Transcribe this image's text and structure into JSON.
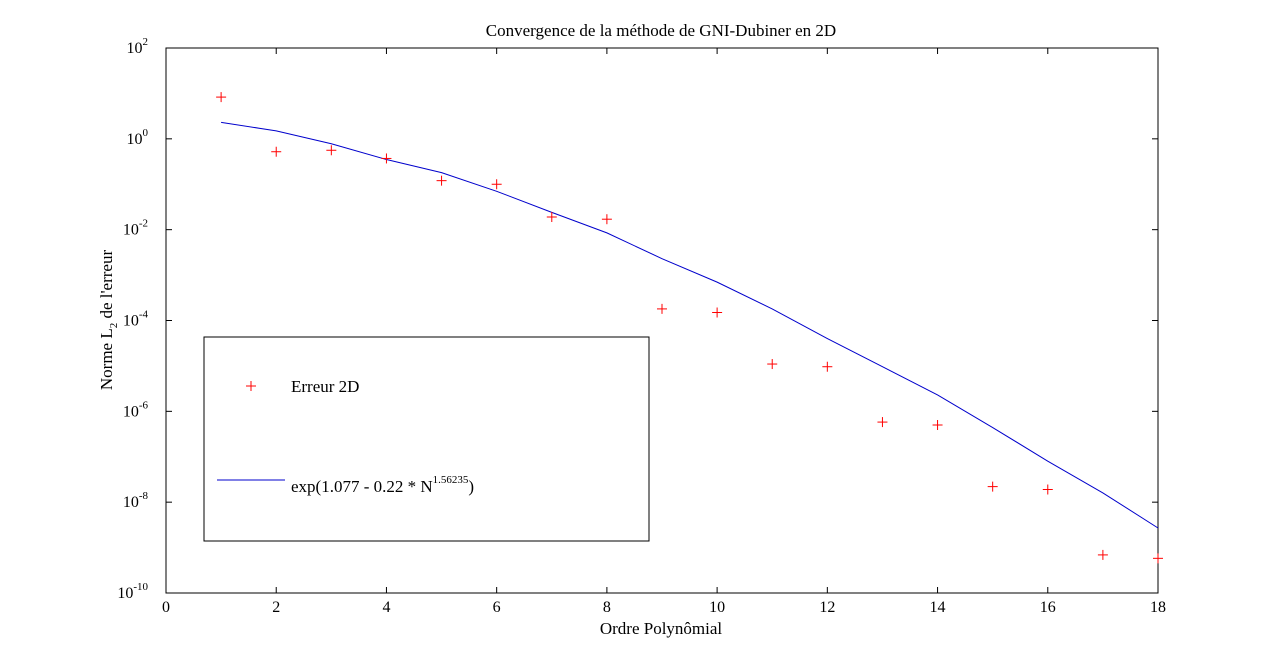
{
  "chart_data": {
    "type": "scatter",
    "title": "Convergence de la méthode de GNI-Dubiner en 2D",
    "xlabel": "Ordre Polynômial",
    "ylabel": {
      "main": "Norme L",
      "sub": "2",
      "rest": " de l'erreur"
    },
    "xlim": [
      0,
      18
    ],
    "ylim": [
      1e-10,
      100
    ],
    "yscale": "log",
    "xticks": [
      0,
      2,
      4,
      6,
      8,
      10,
      12,
      14,
      16,
      18
    ],
    "yticks": [
      {
        "base": "10",
        "exp": "2",
        "value": 100
      },
      {
        "base": "10",
        "exp": "0",
        "value": 1
      },
      {
        "base": "10",
        "exp": "-2",
        "value": 0.01
      },
      {
        "base": "10",
        "exp": "-4",
        "value": 0.0001
      },
      {
        "base": "10",
        "exp": "-6",
        "value": 1e-06
      },
      {
        "base": "10",
        "exp": "-8",
        "value": 1e-08
      },
      {
        "base": "10",
        "exp": "-10",
        "value": 1e-10
      }
    ],
    "grid": false,
    "legend": "center-left",
    "series": [
      {
        "name": "Erreur 2D",
        "kind": "marker",
        "marker": "+",
        "color": "#ff0000",
        "x": [
          1,
          2,
          3,
          4,
          5,
          6,
          7,
          8,
          9,
          10,
          11,
          12,
          13,
          14,
          15,
          16,
          17,
          18
        ],
        "y": [
          8.3,
          0.52,
          0.56,
          0.37,
          0.12,
          0.1,
          0.019,
          0.017,
          0.00018,
          0.00015,
          1.1e-05,
          9.6e-06,
          5.8e-07,
          5e-07,
          2.2e-08,
          1.9e-08,
          6.9e-10,
          5.8e-10
        ]
      },
      {
        "name": {
          "main": "exp(1.077 - 0.22 * N",
          "sup": "1.56235",
          "close": ")"
        },
        "kind": "line",
        "color": "#0000cc",
        "x": [
          1,
          2,
          3,
          4,
          5,
          6,
          7,
          8,
          9,
          10,
          11,
          12,
          13,
          14,
          15,
          16,
          17,
          18
        ],
        "y": [
          2.3,
          1.5,
          0.78,
          0.35,
          0.18,
          0.07,
          0.024,
          0.0085,
          0.0023,
          0.0007,
          0.00018,
          4e-05,
          9.6e-06,
          2.3e-06,
          4.4e-07,
          8e-08,
          1.6e-08,
          2.7e-09
        ]
      }
    ]
  }
}
